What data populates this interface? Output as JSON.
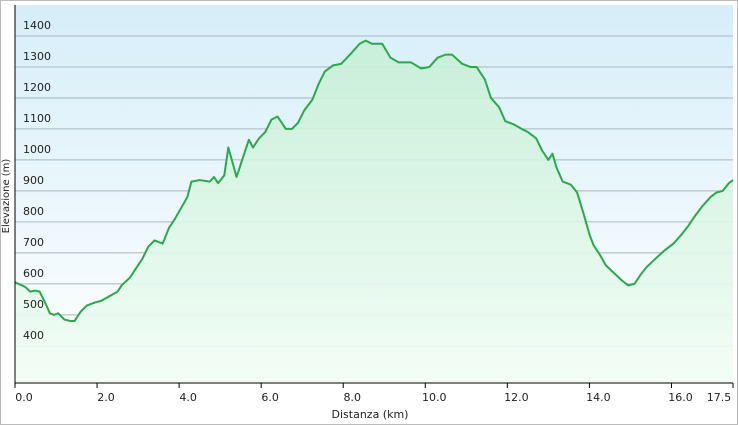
{
  "chart_data": {
    "type": "area",
    "x_label": "Distanza  (km)",
    "y_label": "Elevazione (m)",
    "color": "#2aa84a",
    "grid": true,
    "xlim": [
      0,
      17.5
    ],
    "ylim": [
      280,
      1500
    ],
    "xticks": [
      {
        "value": 0,
        "label": "0.0"
      },
      {
        "value": 2,
        "label": "2.0"
      },
      {
        "value": 4,
        "label": "4.0"
      },
      {
        "value": 6,
        "label": "6.0"
      },
      {
        "value": 8,
        "label": "8.0"
      },
      {
        "value": 10,
        "label": "10.0"
      },
      {
        "value": 12,
        "label": "12.0"
      },
      {
        "value": 14,
        "label": "14.0"
      },
      {
        "value": 16,
        "label": "16.0"
      },
      17.5
    ],
    "yticks": [
      400,
      500,
      600,
      700,
      800,
      900,
      1000,
      1100,
      1200,
      1300,
      1400
    ],
    "x": [
      0,
      0.25,
      0.37,
      0.5,
      0.6,
      0.75,
      0.85,
      0.95,
      1.05,
      1.2,
      1.35,
      1.45,
      1.6,
      1.75,
      1.95,
      2.1,
      2.3,
      2.5,
      2.6,
      2.8,
      2.95,
      3.1,
      3.25,
      3.4,
      3.6,
      3.75,
      3.9,
      4.05,
      4.2,
      4.3,
      4.5,
      4.75,
      4.85,
      4.95,
      5.1,
      5.2,
      5.4,
      5.55,
      5.7,
      5.8,
      5.95,
      6.1,
      6.25,
      6.4,
      6.6,
      6.75,
      6.9,
      7.05,
      7.25,
      7.4,
      7.55,
      7.75,
      7.95,
      8.2,
      8.4,
      8.55,
      8.7,
      8.95,
      9.15,
      9.35,
      9.65,
      9.9,
      10.1,
      10.3,
      10.5,
      10.65,
      10.9,
      11.1,
      11.25,
      11.45,
      11.6,
      11.8,
      11.95,
      12.15,
      12.35,
      12.5,
      12.7,
      12.85,
      13.0,
      13.1,
      13.2,
      13.35,
      13.55,
      13.7,
      13.85,
      14.0,
      14.1,
      14.25,
      14.4,
      14.6,
      14.8,
      14.95,
      15.1,
      15.25,
      15.4,
      15.6,
      15.85,
      16.05,
      16.25,
      16.4,
      16.55,
      16.75,
      16.95,
      17.1,
      17.25,
      17.4,
      17.5
    ],
    "values": [
      605,
      590,
      575,
      578,
      575,
      535,
      505,
      500,
      505,
      485,
      480,
      480,
      510,
      530,
      540,
      545,
      560,
      575,
      595,
      620,
      650,
      680,
      720,
      740,
      730,
      780,
      810,
      845,
      880,
      930,
      935,
      930,
      945,
      925,
      950,
      1040,
      945,
      1005,
      1065,
      1040,
      1070,
      1090,
      1130,
      1140,
      1100,
      1100,
      1120,
      1160,
      1195,
      1245,
      1285,
      1305,
      1310,
      1345,
      1375,
      1385,
      1375,
      1375,
      1330,
      1315,
      1315,
      1295,
      1300,
      1330,
      1340,
      1340,
      1310,
      1300,
      1300,
      1260,
      1200,
      1170,
      1125,
      1115,
      1100,
      1090,
      1070,
      1030,
      1000,
      1020,
      975,
      930,
      920,
      895,
      830,
      760,
      725,
      695,
      660,
      635,
      610,
      595,
      600,
      630,
      655,
      680,
      710,
      730,
      760,
      785,
      815,
      850,
      880,
      895,
      900,
      925,
      935
    ]
  }
}
